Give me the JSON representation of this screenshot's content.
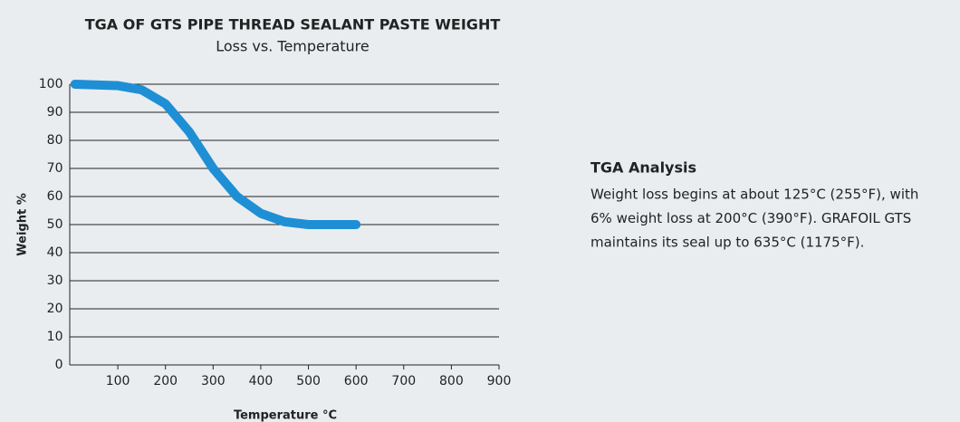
{
  "chart_data": {
    "type": "line",
    "title": "TGA OF GTS PIPE THREAD SEALANT PASTE WEIGHT",
    "subtitle": "Loss vs. Temperature",
    "x_label": "Temperature °C",
    "y_label": "Weight %",
    "x": [
      10,
      100,
      150,
      200,
      250,
      300,
      350,
      400,
      450,
      500,
      550,
      600
    ],
    "series": [
      {
        "name": "GTS",
        "color": "#1e8fd5",
        "values": [
          100,
          99.5,
          98,
          93,
          83,
          70,
          60,
          54,
          51,
          50,
          50,
          50
        ]
      }
    ],
    "xlim": [
      0,
      900
    ],
    "xticks": [
      100,
      200,
      300,
      400,
      500,
      600,
      700,
      800,
      900
    ],
    "ylim": [
      0,
      100
    ],
    "yticks": [
      0,
      10,
      20,
      30,
      40,
      50,
      60,
      70,
      80,
      90,
      100
    ],
    "grid": true
  },
  "aside": {
    "heading": "TGA Analysis",
    "lines": [
      "Weight loss begins at about 125°C (255°F), with",
      "6% weight loss at 200°C (390°F). GRAFOIL GTS",
      "maintains its seal up to 635°C (1175°F)."
    ]
  }
}
